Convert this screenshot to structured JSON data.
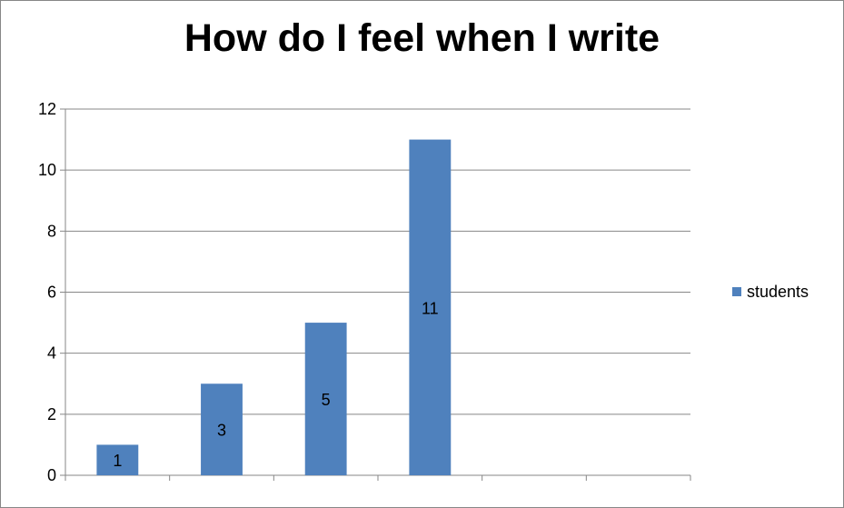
{
  "chart_data": {
    "type": "bar",
    "title": "How do I feel when I write",
    "categories": [
      "",
      "",
      "",
      "",
      "",
      ""
    ],
    "series": [
      {
        "name": "students",
        "values": [
          1,
          3,
          5,
          11,
          null,
          null
        ],
        "color": "#4f81bd"
      }
    ],
    "data_labels": [
      "1",
      "3",
      "5",
      "11",
      "",
      ""
    ],
    "ylim": [
      0,
      12
    ],
    "yticks": [
      0,
      2,
      4,
      6,
      8,
      10,
      12
    ],
    "grid": true,
    "legend": "right"
  }
}
